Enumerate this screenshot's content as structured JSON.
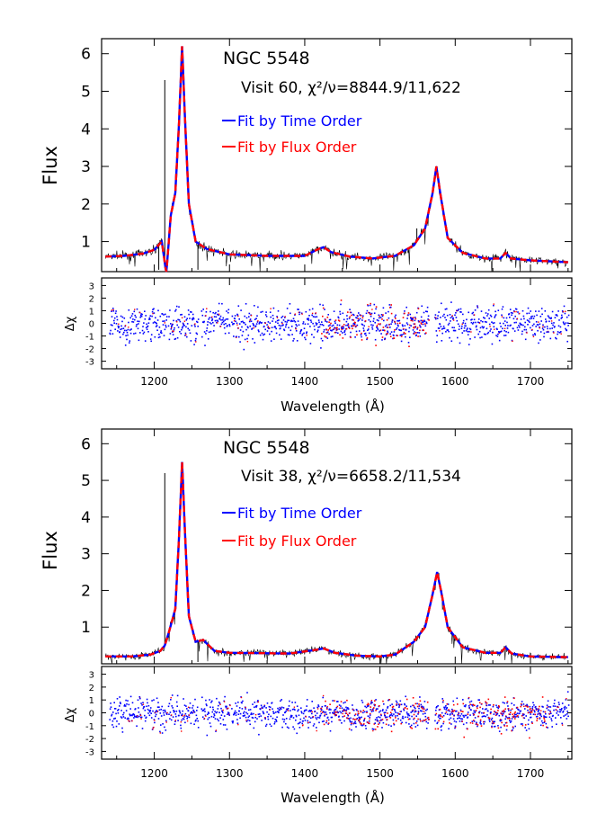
{
  "colors": {
    "time_order": "#0000ff",
    "flux_order": "#ff0000",
    "data": "#000000",
    "frame": "#000000"
  },
  "chart_data": [
    {
      "type": "line",
      "target": "NGC 5548",
      "visit_label": "Visit 60, χ²/ν=8844.9/11,622",
      "legend": [
        "Fit by Time Order",
        "Fit by Flux Order"
      ],
      "legend_placement": "top-center",
      "xlabel": "Wavelength (Å)",
      "xlim": [
        1130,
        1755
      ],
      "xticks": [
        1200,
        1300,
        1400,
        1500,
        1600,
        1700
      ],
      "flux_panel": {
        "ylabel": "Flux",
        "ylim": [
          0.2,
          6.4
        ],
        "yticks": [
          1,
          2,
          3,
          4,
          5,
          6
        ],
        "model_points": [
          [
            1135,
            0.6
          ],
          [
            1160,
            0.62
          ],
          [
            1185,
            0.68
          ],
          [
            1200,
            0.78
          ],
          [
            1210,
            1.0
          ],
          [
            1216,
            0.15
          ],
          [
            1222,
            1.7
          ],
          [
            1228,
            2.3
          ],
          [
            1233,
            4.2
          ],
          [
            1237,
            6.2
          ],
          [
            1241,
            4.2
          ],
          [
            1246,
            2.0
          ],
          [
            1255,
            1.0
          ],
          [
            1270,
            0.8
          ],
          [
            1300,
            0.66
          ],
          [
            1350,
            0.62
          ],
          [
            1400,
            0.62
          ],
          [
            1418,
            0.8
          ],
          [
            1425,
            0.85
          ],
          [
            1435,
            0.72
          ],
          [
            1460,
            0.6
          ],
          [
            1490,
            0.55
          ],
          [
            1520,
            0.62
          ],
          [
            1545,
            0.9
          ],
          [
            1560,
            1.35
          ],
          [
            1570,
            2.3
          ],
          [
            1575,
            3.0
          ],
          [
            1580,
            2.3
          ],
          [
            1590,
            1.1
          ],
          [
            1610,
            0.7
          ],
          [
            1640,
            0.55
          ],
          [
            1660,
            0.55
          ],
          [
            1667,
            0.7
          ],
          [
            1674,
            0.55
          ],
          [
            1700,
            0.5
          ],
          [
            1750,
            0.45
          ]
        ],
        "spikes": [
          [
            1214,
            5.3
          ],
          [
            1206,
            0.25
          ],
          [
            1258,
            0.25
          ],
          [
            1549,
            1.35
          ]
        ]
      },
      "residual_panel": {
        "ylabel": "Δχ",
        "ylim": [
          -3.6,
          3.6
        ],
        "yticks": [
          -3,
          -2,
          -1,
          0,
          1,
          2,
          3
        ],
        "blue_spread": 1.8,
        "red_band": [
          1420,
          1570
        ]
      }
    },
    {
      "type": "line",
      "target": "NGC 5548",
      "visit_label": "Visit 38, χ²/ν=6658.2/11,534",
      "legend": [
        "Fit by Time Order",
        "Fit by Flux Order"
      ],
      "legend_placement": "top-center",
      "xlabel": "Wavelength (Å)",
      "xlim": [
        1130,
        1755
      ],
      "xticks": [
        1200,
        1300,
        1400,
        1500,
        1600,
        1700
      ],
      "flux_panel": {
        "ylabel": "Flux",
        "ylim": [
          0.0,
          6.4
        ],
        "yticks": [
          1,
          2,
          3,
          4,
          5,
          6
        ],
        "model_points": [
          [
            1140,
            0.2
          ],
          [
            1170,
            0.2
          ],
          [
            1195,
            0.25
          ],
          [
            1208,
            0.35
          ],
          [
            1214,
            0.5
          ],
          [
            1220,
            0.9
          ],
          [
            1228,
            1.5
          ],
          [
            1233,
            3.5
          ],
          [
            1237,
            5.5
          ],
          [
            1241,
            3.5
          ],
          [
            1246,
            1.3
          ],
          [
            1255,
            0.6
          ],
          [
            1265,
            0.65
          ],
          [
            1280,
            0.35
          ],
          [
            1300,
            0.3
          ],
          [
            1380,
            0.28
          ],
          [
            1415,
            0.38
          ],
          [
            1425,
            0.42
          ],
          [
            1440,
            0.3
          ],
          [
            1470,
            0.22
          ],
          [
            1500,
            0.2
          ],
          [
            1520,
            0.25
          ],
          [
            1545,
            0.6
          ],
          [
            1560,
            1.0
          ],
          [
            1570,
            1.9
          ],
          [
            1576,
            2.5
          ],
          [
            1582,
            1.9
          ],
          [
            1590,
            1.0
          ],
          [
            1610,
            0.45
          ],
          [
            1640,
            0.3
          ],
          [
            1660,
            0.3
          ],
          [
            1667,
            0.45
          ],
          [
            1675,
            0.28
          ],
          [
            1700,
            0.2
          ],
          [
            1750,
            0.18
          ]
        ],
        "spikes": [
          [
            1214,
            5.2
          ],
          [
            1258,
            0.05
          ]
        ]
      },
      "residual_panel": {
        "ylabel": "Δχ",
        "ylim": [
          -3.6,
          3.6
        ],
        "yticks": [
          -3,
          -2,
          -1,
          0,
          1,
          2,
          3
        ],
        "blue_spread": 1.5,
        "red_band": [
          1420,
          1720
        ]
      }
    }
  ]
}
